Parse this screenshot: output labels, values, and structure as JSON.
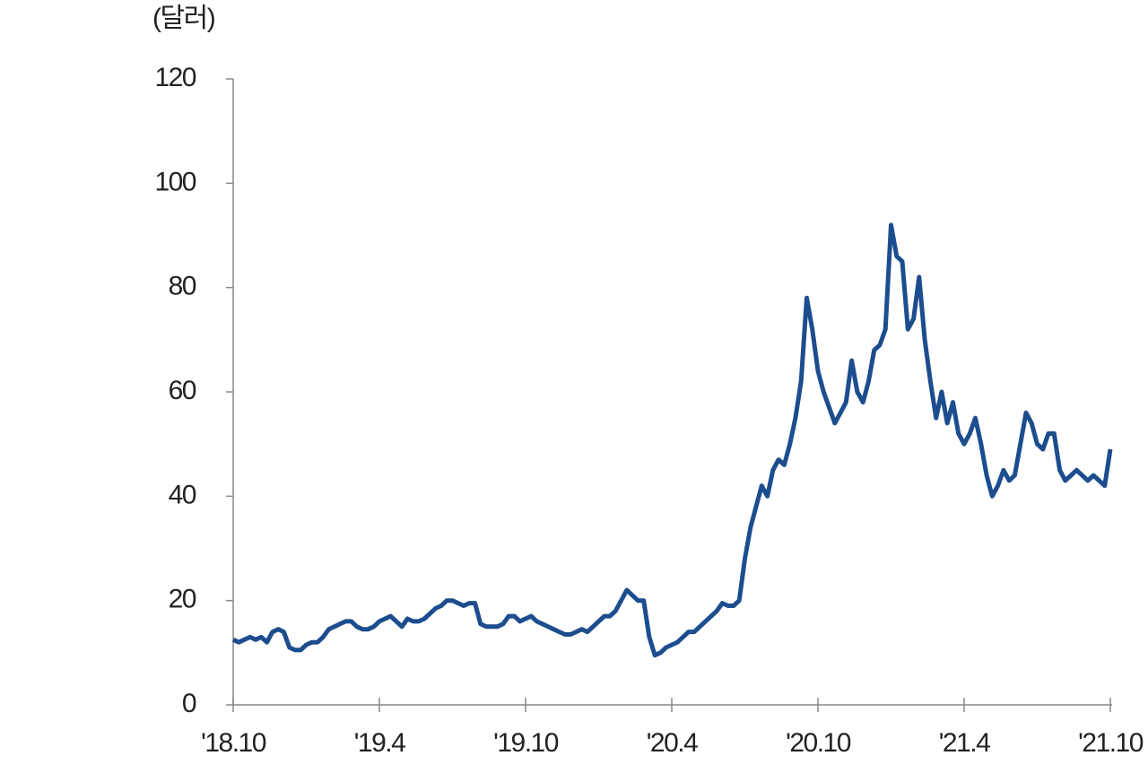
{
  "chart_data": {
    "type": "line",
    "y_unit": "(달러)",
    "categories": [
      "'18.10",
      null,
      null,
      null,
      null,
      null,
      null,
      null,
      null,
      null,
      null,
      null,
      null,
      null,
      null,
      null,
      null,
      null,
      null,
      null,
      null,
      null,
      null,
      null,
      null,
      null,
      "'19.4",
      null,
      null,
      null,
      null,
      null,
      null,
      null,
      null,
      null,
      null,
      null,
      null,
      null,
      null,
      null,
      null,
      null,
      null,
      null,
      null,
      null,
      null,
      null,
      null,
      null,
      "'19.10",
      null,
      null,
      null,
      null,
      null,
      null,
      null,
      null,
      null,
      null,
      null,
      null,
      null,
      null,
      null,
      null,
      null,
      null,
      null,
      null,
      null,
      null,
      null,
      null,
      null,
      "'20.4",
      null,
      null,
      null,
      null,
      null,
      null,
      null,
      null,
      null,
      null,
      null,
      null,
      null,
      null,
      null,
      null,
      null,
      null,
      null,
      null,
      null,
      null,
      null,
      null,
      null,
      "'20.10",
      null,
      null,
      null,
      null,
      null,
      null,
      null,
      null,
      null,
      null,
      null,
      null,
      null,
      null,
      null,
      null,
      null,
      null,
      null,
      null,
      null,
      null,
      null,
      null,
      null,
      "'21.4",
      null,
      null,
      null,
      null,
      null,
      null,
      null,
      null,
      null,
      null,
      null,
      null,
      null,
      null,
      null,
      null,
      null,
      null,
      null,
      null,
      null,
      null,
      null,
      null,
      null,
      "'21.10"
    ],
    "series": [
      {
        "color": "#1c4d8e",
        "values": [
          12.5,
          12,
          12.5,
          13,
          12.5,
          13,
          12,
          14,
          14.5,
          14,
          11,
          10.5,
          10.5,
          11.5,
          12,
          12,
          13,
          14.5,
          15,
          15.5,
          16,
          16,
          15,
          14.5,
          14.5,
          15,
          16,
          16.5,
          17,
          16,
          15,
          16.5,
          16,
          16,
          16.5,
          17.5,
          18.5,
          19,
          20,
          20,
          19.5,
          19,
          19.5,
          19.5,
          15.5,
          15,
          15,
          15,
          15.5,
          17,
          17,
          16,
          16.5,
          17,
          16,
          15.5,
          15,
          14.5,
          14,
          13.5,
          13.5,
          14,
          14.5,
          14,
          15,
          16,
          17,
          17,
          18,
          20,
          22,
          21,
          20,
          20,
          13,
          9.5,
          10,
          11,
          11.5,
          12,
          13,
          14,
          14,
          15,
          16,
          17,
          18,
          19.5,
          19,
          19,
          20,
          28,
          34,
          38,
          42,
          40,
          45,
          47,
          46,
          50,
          55,
          62,
          78,
          72,
          64,
          60,
          57,
          54,
          56,
          58,
          66,
          60,
          58,
          62,
          68,
          69,
          72,
          92,
          86,
          85,
          72,
          74,
          82,
          70,
          62,
          55,
          60,
          54,
          58,
          52,
          50,
          52,
          55,
          50,
          44,
          40,
          42,
          45,
          43,
          44,
          50,
          56,
          54,
          50,
          49,
          52,
          52,
          45,
          43,
          44,
          45,
          44,
          43,
          44,
          43,
          42,
          49
        ]
      }
    ],
    "ylim": [
      0,
      120
    ],
    "yticks": [
      0,
      20,
      40,
      60,
      80,
      100,
      120
    ]
  }
}
